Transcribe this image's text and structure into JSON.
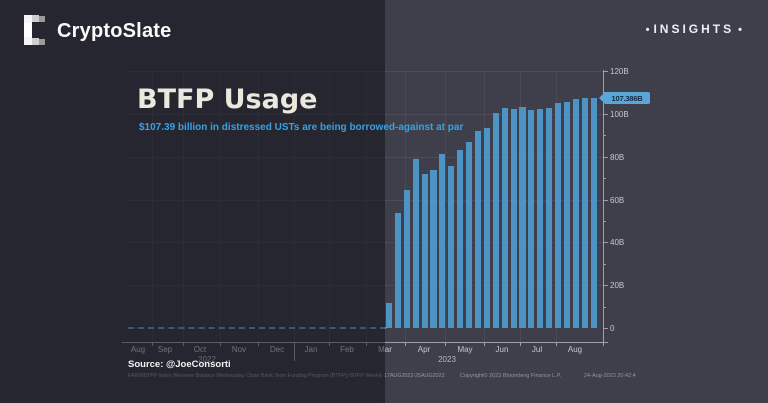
{
  "header": {
    "brand": "CryptoSlate",
    "insights_label": "INSIGHTS",
    "bullet": "•"
  },
  "chart_data": {
    "type": "bar",
    "title": "BTFP Usage",
    "subtitle": "$107.39 billion in distressed USTs are being borrowed-against at par",
    "unit": "USD billions",
    "ylim": [
      0,
      120
    ],
    "y_axis_side": "right",
    "grid": true,
    "y_tick_labels_top_to_bottom": [
      "120B",
      "100B",
      "80B",
      "60B",
      "40B",
      "20B",
      "0"
    ],
    "y_tick_values_top_to_bottom": [
      120,
      100,
      80,
      60,
      40,
      20,
      0
    ],
    "x_month_labels": [
      "Aug",
      "Sep",
      "Oct",
      "Nov",
      "Dec",
      "Jan",
      "Feb",
      "Mar",
      "Apr",
      "May",
      "Jun",
      "Jul",
      "Aug"
    ],
    "year_labels": [
      "2022",
      "2023"
    ],
    "frequency": "Weekly",
    "date_range": "17AUG2022-25AUG2023",
    "flat_zero_segment": "series is 0 (dashed line) from Aug 2022 until mid-March 2023",
    "weekly_values_billions": [
      11.9,
      53.7,
      64.4,
      79.0,
      71.8,
      74.0,
      81.3,
      75.8,
      83.1,
      87.0,
      91.9,
      93.6,
      100.2,
      102.7,
      102.3,
      103.1,
      102.0,
      102.3,
      102.9,
      105.1,
      105.7,
      106.9,
      107.2,
      107.39
    ],
    "last_value_label": "107.386B",
    "bar_color": "#4d93c4"
  },
  "source": {
    "label": "Source: @JoeConsorti"
  },
  "footer": {
    "index_line": "FARWBTFP Index (Reserve Balance Wednesday Close Bank Term Funding Program (BTFP)) BTFP  Weekly 17AUG2022-25AUG2023",
    "copyright": "Copyright© 2023 Bloomberg Finance L.P.",
    "datetime": "24-Aug-2023 20:42:4"
  },
  "colors": {
    "bg_right": "#3f3f4b",
    "bg_left": "#25252e",
    "bar": "#4d93c4",
    "accent_blue": "#36a3e4",
    "badge_bg": "#5aa6d8",
    "badge_text": "#152a41",
    "title": "#ebe8de"
  }
}
